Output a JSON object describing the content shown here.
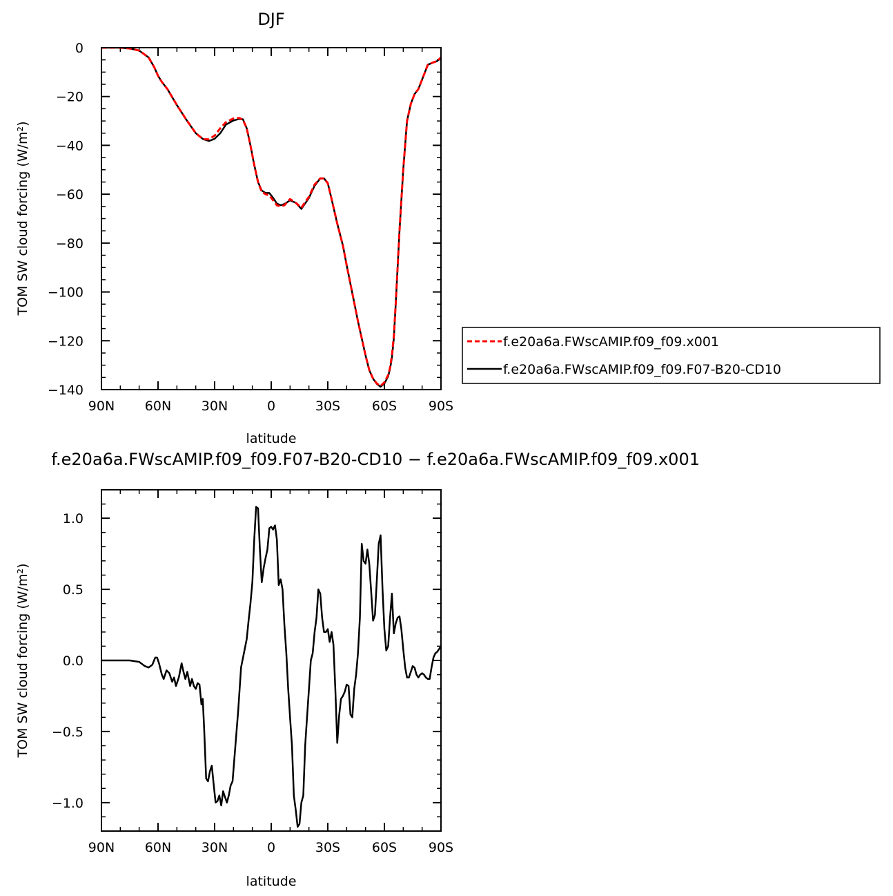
{
  "chart_data": [
    {
      "type": "line",
      "title": "DJF",
      "xlabel": "latitude",
      "ylabel": "TOM SW cloud forcing (W/m²)",
      "xlim": [
        90,
        -90
      ],
      "ylim": [
        -140,
        0
      ],
      "xticks": [
        90,
        60,
        30,
        0,
        -30,
        -60,
        -90
      ],
      "xtick_labels": [
        "90N",
        "60N",
        "30N",
        "0",
        "30S",
        "60S",
        "90S"
      ],
      "yticks": [
        0,
        -20,
        -40,
        -60,
        -80,
        -100,
        -120,
        -140
      ],
      "ytick_labels": [
        "0",
        "−20",
        "−40",
        "−60",
        "−80",
        "−100",
        "−120",
        "−140"
      ],
      "legend_position": "right",
      "grid": false,
      "series": [
        {
          "name": "f.e20a6a.FWscAMIP.f09_f09.x001",
          "color": "#ff0000",
          "dash": "dashed",
          "x": [
            90,
            80,
            75,
            70,
            65,
            62,
            60,
            58,
            55,
            50,
            45,
            40,
            36,
            33,
            30,
            27,
            24,
            20,
            17,
            15,
            13,
            11,
            9,
            7,
            5,
            3,
            1,
            -1,
            -3,
            -5,
            -7,
            -10,
            -13,
            -16,
            -20,
            -23,
            -26,
            -28,
            -30,
            -32,
            -35,
            -38,
            -40,
            -43,
            -46,
            -48,
            -50,
            -52,
            -54,
            -56,
            -58,
            -60,
            -62,
            -63,
            -64,
            -65,
            -66,
            -68,
            -70,
            -72,
            -74,
            -76,
            -78,
            -80,
            -83,
            -86,
            -88,
            -90
          ],
          "y": [
            0,
            0,
            -0.3,
            -1.2,
            -4,
            -8,
            -11.5,
            -14,
            -17,
            -23.5,
            -29.5,
            -35,
            -37.5,
            -37.5,
            -36,
            -33,
            -30.5,
            -29,
            -28.8,
            -29.5,
            -33,
            -40,
            -48,
            -55,
            -59,
            -60,
            -60.5,
            -62.5,
            -64.5,
            -65,
            -64.5,
            -62,
            -63.5,
            -65.5,
            -61,
            -56,
            -53.5,
            -53.5,
            -55.5,
            -62,
            -72,
            -81,
            -89,
            -100.5,
            -112,
            -119,
            -126,
            -132,
            -135.5,
            -137.5,
            -138.5,
            -137,
            -134,
            -131,
            -126,
            -118,
            -105,
            -75,
            -50,
            -30,
            -23,
            -19,
            -17,
            -13,
            -7,
            -6,
            -5.5,
            -4
          ]
        },
        {
          "name": "f.e20a6a.FWscAMIP.f09_f09.F07-B20-CD10",
          "color": "#000000",
          "dash": "solid",
          "x": [
            90,
            80,
            75,
            70,
            65,
            62,
            60,
            58,
            55,
            50,
            45,
            40,
            36,
            33,
            30,
            27,
            24,
            20,
            17,
            15,
            13,
            11,
            9,
            7,
            5,
            3,
            1,
            -1,
            -3,
            -5,
            -7,
            -10,
            -13,
            -16,
            -20,
            -23,
            -26,
            -28,
            -30,
            -32,
            -35,
            -38,
            -40,
            -43,
            -46,
            -48,
            -50,
            -52,
            -54,
            -56,
            -58,
            -60,
            -62,
            -63,
            -64,
            -65,
            -66,
            -68,
            -70,
            -72,
            -74,
            -76,
            -78,
            -80,
            -83,
            -86,
            -88,
            -90
          ],
          "y": [
            0,
            0,
            -0.3,
            -1.2,
            -4,
            -8,
            -11.5,
            -14,
            -17,
            -23.5,
            -29.5,
            -35,
            -37.5,
            -38.2,
            -37.3,
            -35,
            -31.5,
            -29.8,
            -29.2,
            -29.3,
            -33,
            -40,
            -48,
            -55,
            -58.5,
            -59.5,
            -59.5,
            -61.5,
            -63.8,
            -64.5,
            -64,
            -62.5,
            -63.5,
            -66,
            -61.5,
            -56.5,
            -53.5,
            -53.5,
            -55.5,
            -62,
            -72,
            -81,
            -89,
            -100.5,
            -112,
            -119,
            -126,
            -132,
            -135.5,
            -137.7,
            -138.8,
            -137.5,
            -134.5,
            -131.5,
            -127,
            -119,
            -105,
            -75,
            -50,
            -30,
            -23,
            -19,
            -17,
            -13,
            -7,
            -6,
            -5.5,
            -4
          ]
        }
      ]
    },
    {
      "type": "line",
      "title": "f.e20a6a.FWscAMIP.f09_f09.F07-B20-CD10 − f.e20a6a.FWscAMIP.f09_f09.x001",
      "xlabel": "latitude",
      "ylabel": "TOM SW cloud forcing (W/m²)",
      "xlim": [
        90,
        -90
      ],
      "ylim": [
        -1.2,
        1.2
      ],
      "xticks": [
        90,
        60,
        30,
        0,
        -30,
        -60,
        -90
      ],
      "xtick_labels": [
        "90N",
        "60N",
        "30N",
        "0",
        "30S",
        "60S",
        "90S"
      ],
      "yticks": [
        1.0,
        0.5,
        0.0,
        -0.5,
        -1.0
      ],
      "ytick_labels": [
        "1.0",
        "0.5",
        "0.0",
        "−0.5",
        "−1.0"
      ],
      "grid": false,
      "series": [
        {
          "color": "#000000",
          "dash": "solid",
          "x": [
            90,
            80,
            75,
            70,
            67,
            65,
            63,
            61.5,
            60.5,
            59.5,
            58,
            57,
            55.5,
            54,
            52.5,
            51.5,
            50.5,
            49,
            47.5,
            46.5,
            45.5,
            44.5,
            43,
            42,
            41,
            40,
            39,
            38,
            37,
            36.3,
            35.5,
            34.5,
            33.5,
            32.5,
            31.5,
            30.5,
            29.5,
            28.5,
            27.5,
            26.5,
            25.5,
            24.5,
            23.5,
            22.5,
            21.5,
            20.5,
            19,
            17.5,
            16,
            14.5,
            13,
            12,
            11,
            10,
            9,
            8,
            7,
            6,
            5,
            4,
            3,
            2,
            1,
            0,
            -1,
            -2,
            -3,
            -4,
            -5,
            -6,
            -7,
            -8,
            -9,
            -10,
            -11,
            -12,
            -13,
            -14,
            -15,
            -16,
            -17,
            -18,
            -19,
            -20,
            -21,
            -22,
            -23,
            -24,
            -25,
            -26,
            -27,
            -28,
            -29,
            -30,
            -31,
            -32,
            -33,
            -34,
            -35,
            -36,
            -37,
            -38,
            -39,
            -40,
            -41,
            -42,
            -43,
            -44,
            -45,
            -46,
            -47,
            -48,
            -49,
            -50,
            -51,
            -52,
            -53,
            -54,
            -55,
            -56,
            -57,
            -58,
            -59,
            -60,
            -61,
            -62,
            -63,
            -64,
            -65,
            -66,
            -67,
            -68,
            -69,
            -70,
            -71,
            -72,
            -73,
            -74,
            -75,
            -76,
            -77,
            -78,
            -79,
            -80,
            -81,
            -82,
            -83,
            -84,
            -85,
            -86,
            -87,
            -88,
            -89,
            -90
          ],
          "y": [
            0,
            0,
            0,
            -0.01,
            -0.04,
            -0.05,
            -0.03,
            0.02,
            0.02,
            -0.02,
            -0.1,
            -0.13,
            -0.07,
            -0.09,
            -0.15,
            -0.12,
            -0.18,
            -0.12,
            -0.02,
            -0.08,
            -0.13,
            -0.08,
            -0.18,
            -0.13,
            -0.18,
            -0.2,
            -0.16,
            -0.17,
            -0.31,
            -0.27,
            -0.5,
            -0.83,
            -0.85,
            -0.78,
            -0.74,
            -0.87,
            -1.0,
            -0.99,
            -0.95,
            -1.02,
            -0.92,
            -0.96,
            -1.0,
            -0.95,
            -0.88,
            -0.85,
            -0.6,
            -0.35,
            -0.05,
            0.05,
            0.15,
            0.28,
            0.4,
            0.55,
            0.85,
            1.08,
            1.07,
            0.78,
            0.55,
            0.65,
            0.72,
            0.78,
            0.93,
            0.94,
            0.92,
            0.95,
            0.85,
            0.53,
            0.57,
            0.5,
            0.25,
            0.05,
            -0.2,
            -0.4,
            -0.6,
            -0.95,
            -1.05,
            -1.17,
            -1.15,
            -1.0,
            -0.95,
            -0.6,
            -0.4,
            -0.2,
            0.0,
            0.05,
            0.2,
            0.3,
            0.5,
            0.47,
            0.3,
            0.2,
            0.2,
            0.22,
            0.13,
            0.2,
            0.11,
            -0.2,
            -0.58,
            -0.39,
            -0.27,
            -0.25,
            -0.22,
            -0.17,
            -0.18,
            -0.38,
            -0.4,
            -0.2,
            -0.1,
            0.05,
            0.3,
            0.82,
            0.7,
            0.68,
            0.78,
            0.68,
            0.48,
            0.28,
            0.32,
            0.57,
            0.82,
            0.88,
            0.5,
            0.22,
            0.07,
            0.1,
            0.3,
            0.47,
            0.19,
            0.26,
            0.3,
            0.31,
            0.22,
            0.08,
            -0.05,
            -0.12,
            -0.12,
            -0.08,
            -0.04,
            -0.05,
            -0.1,
            -0.12,
            -0.1,
            -0.09,
            -0.1,
            -0.12,
            -0.13,
            -0.13,
            -0.05,
            0.02,
            0.05,
            0.06,
            0.08,
            0.1
          ]
        }
      ]
    }
  ]
}
